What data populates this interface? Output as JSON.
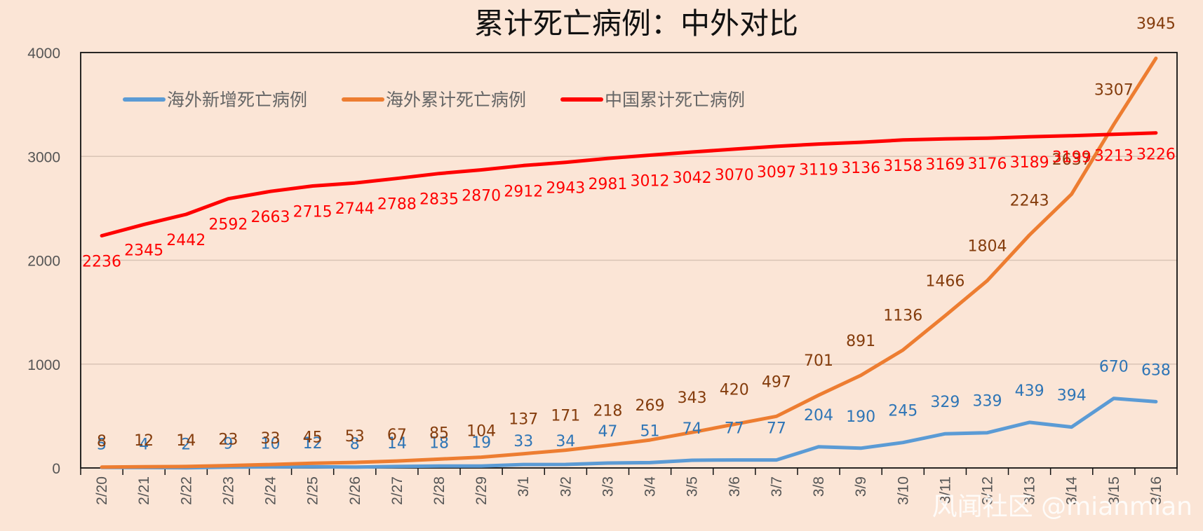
{
  "chart_data": {
    "type": "line",
    "title": "累计死亡病例：中外对比",
    "categories": [
      "2/20",
      "2/21",
      "2/22",
      "2/23",
      "2/24",
      "2/25",
      "2/26",
      "2/27",
      "2/28",
      "2/29",
      "3/1",
      "3/2",
      "3/3",
      "3/4",
      "3/5",
      "3/6",
      "3/7",
      "3/8",
      "3/9",
      "3/10",
      "3/11",
      "3/12",
      "3/13",
      "3/14",
      "3/15",
      "3/16"
    ],
    "ylim": [
      0,
      4000
    ],
    "yticks": [
      "0",
      "1000",
      "2000",
      "3000",
      "4000"
    ],
    "grid": true,
    "legend_position": "top-left",
    "series": [
      {
        "name": "海外新增死亡病例",
        "color": "#5b9bd5",
        "label_color": "#2e75b6",
        "values": [
          5,
          4,
          2,
          9,
          10,
          12,
          8,
          14,
          18,
          19,
          33,
          34,
          47,
          51,
          74,
          77,
          77,
          204,
          190,
          245,
          329,
          339,
          439,
          394,
          670,
          638
        ]
      },
      {
        "name": "海外累计死亡病例",
        "color": "#ed7d31",
        "label_color": "#843c0c",
        "values": [
          8,
          12,
          14,
          23,
          33,
          45,
          53,
          67,
          85,
          104,
          137,
          171,
          218,
          269,
          343,
          420,
          497,
          701,
          891,
          1136,
          1466,
          1804,
          2243,
          2637,
          3307,
          3945
        ]
      },
      {
        "name": "中国累计死亡病例",
        "color": "#ff0000",
        "label_color": "#ff0000",
        "values": [
          2236,
          2345,
          2442,
          2592,
          2663,
          2715,
          2744,
          2788,
          2835,
          2870,
          2912,
          2943,
          2981,
          3012,
          3042,
          3070,
          3097,
          3119,
          3136,
          3158,
          3169,
          3176,
          3189,
          3199,
          3213,
          3226
        ]
      }
    ]
  },
  "watermark": "风闻社区 @mianmian"
}
